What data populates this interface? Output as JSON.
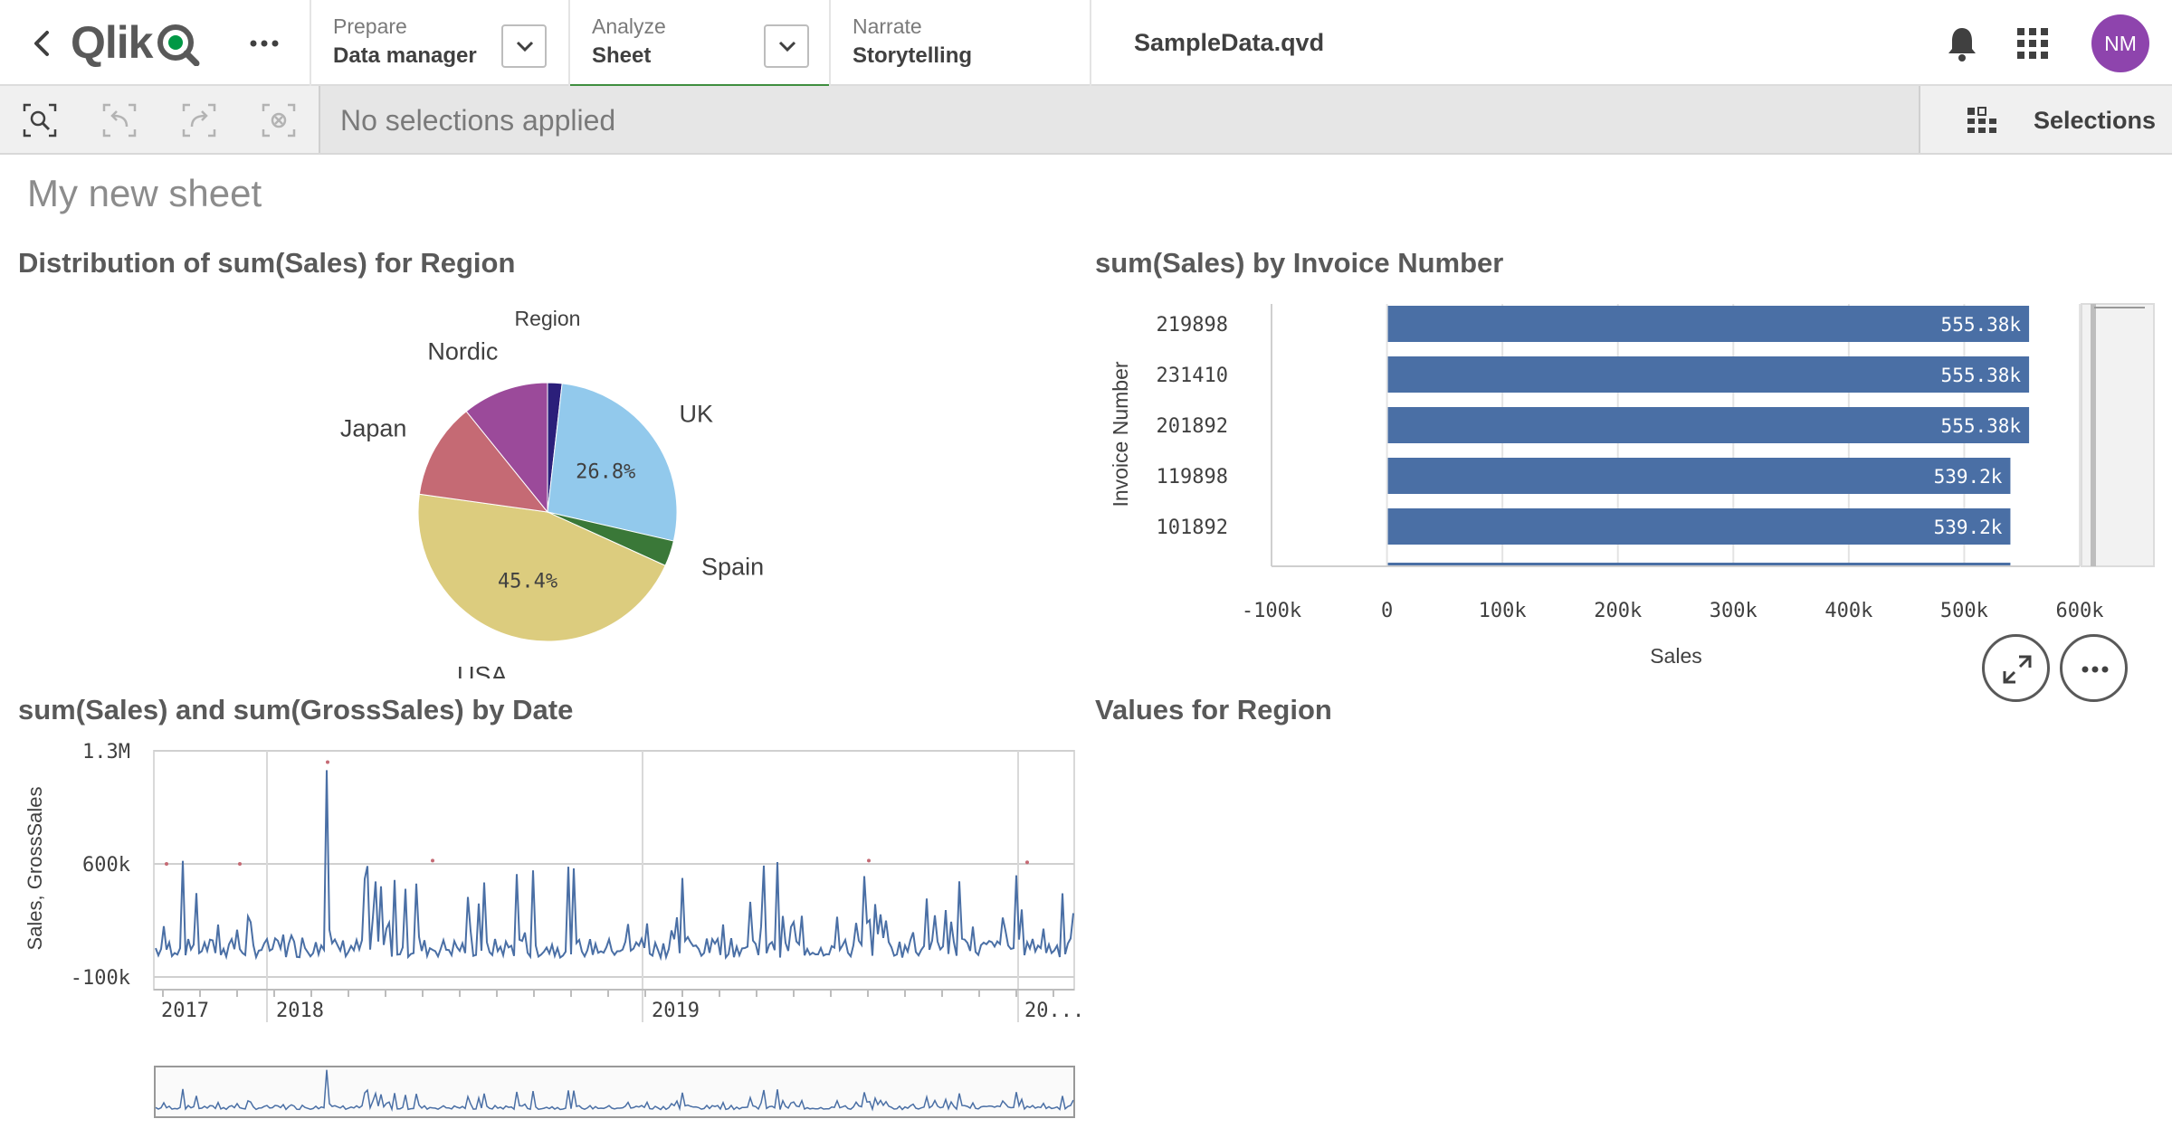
{
  "topbar": {
    "logo": "Qlik",
    "nav": [
      {
        "small": "Prepare",
        "big": "Data manager"
      },
      {
        "small": "Analyze",
        "big": "Sheet"
      },
      {
        "small": "Narrate",
        "big": "Storytelling"
      }
    ],
    "app_title": "SampleData.qvd",
    "avatar_initials": "NM",
    "icons": [
      "back-icon",
      "more-icon",
      "chevron-down-icon",
      "bell-icon",
      "apps-grid-icon"
    ]
  },
  "selections": {
    "status": "No selections applied",
    "panel_label": "Selections",
    "tools": [
      "smart-search-icon",
      "step-back-icon",
      "step-forward-icon",
      "clear-selections-icon"
    ]
  },
  "sheet": {
    "title": "My new sheet"
  },
  "pie_panel": {
    "title": "Distribution of sum(Sales) for Region",
    "chart_data": {
      "type": "pie",
      "legend_title": "Region",
      "slices": [
        {
          "label": "",
          "value": 1.8,
          "color": "#2b1f7a"
        },
        {
          "label": "UK",
          "value": 26.8,
          "display": "26.8%",
          "color": "#92c9ec"
        },
        {
          "label": "Spain",
          "value": 3.2,
          "color": "#3a7838"
        },
        {
          "label": "USA",
          "value": 45.4,
          "display": "45.4%",
          "color": "#dccc7e"
        },
        {
          "label": "Japan",
          "value": 12.0,
          "color": "#c56a74"
        },
        {
          "label": "Nordic",
          "value": 10.8,
          "color": "#9b4a9a"
        }
      ]
    }
  },
  "bar_panel": {
    "title": "sum(Sales) by Invoice Number",
    "chart_data": {
      "type": "bar",
      "orientation": "horizontal",
      "categories": [
        "219898",
        "231410",
        "201892",
        "119898",
        "101892"
      ],
      "values": [
        555380,
        555380,
        555380,
        539200,
        539200
      ],
      "value_labels": [
        "555.38k",
        "555.38k",
        "555.38k",
        "539.2k",
        "539.2k"
      ],
      "xlabel": "Sales",
      "ylabel": "Invoice Number",
      "xlim": [
        -100000,
        600000
      ],
      "xticks": [
        "-100k",
        "0",
        "100k",
        "200k",
        "300k",
        "400k",
        "500k",
        "600k"
      ],
      "color": "#4a6fa5"
    },
    "buttons": [
      "expand-icon",
      "more-icon"
    ]
  },
  "line_panel": {
    "title": "sum(Sales) and sum(GrossSales) by Date",
    "chart_data": {
      "type": "line",
      "ylabel": "Sales, GrossSales",
      "ylim": [
        -100000,
        1300000
      ],
      "yticks": [
        "1.3M",
        "600k",
        "-100k"
      ],
      "xticks": [
        "2017",
        "2018",
        "2019",
        "20..."
      ],
      "series": [
        {
          "name": "Sales",
          "color": "#4a6fa5"
        },
        {
          "name": "GrossSales",
          "color": "#c56a74"
        }
      ]
    }
  },
  "filter_panel": {
    "title": "Values for Region"
  }
}
